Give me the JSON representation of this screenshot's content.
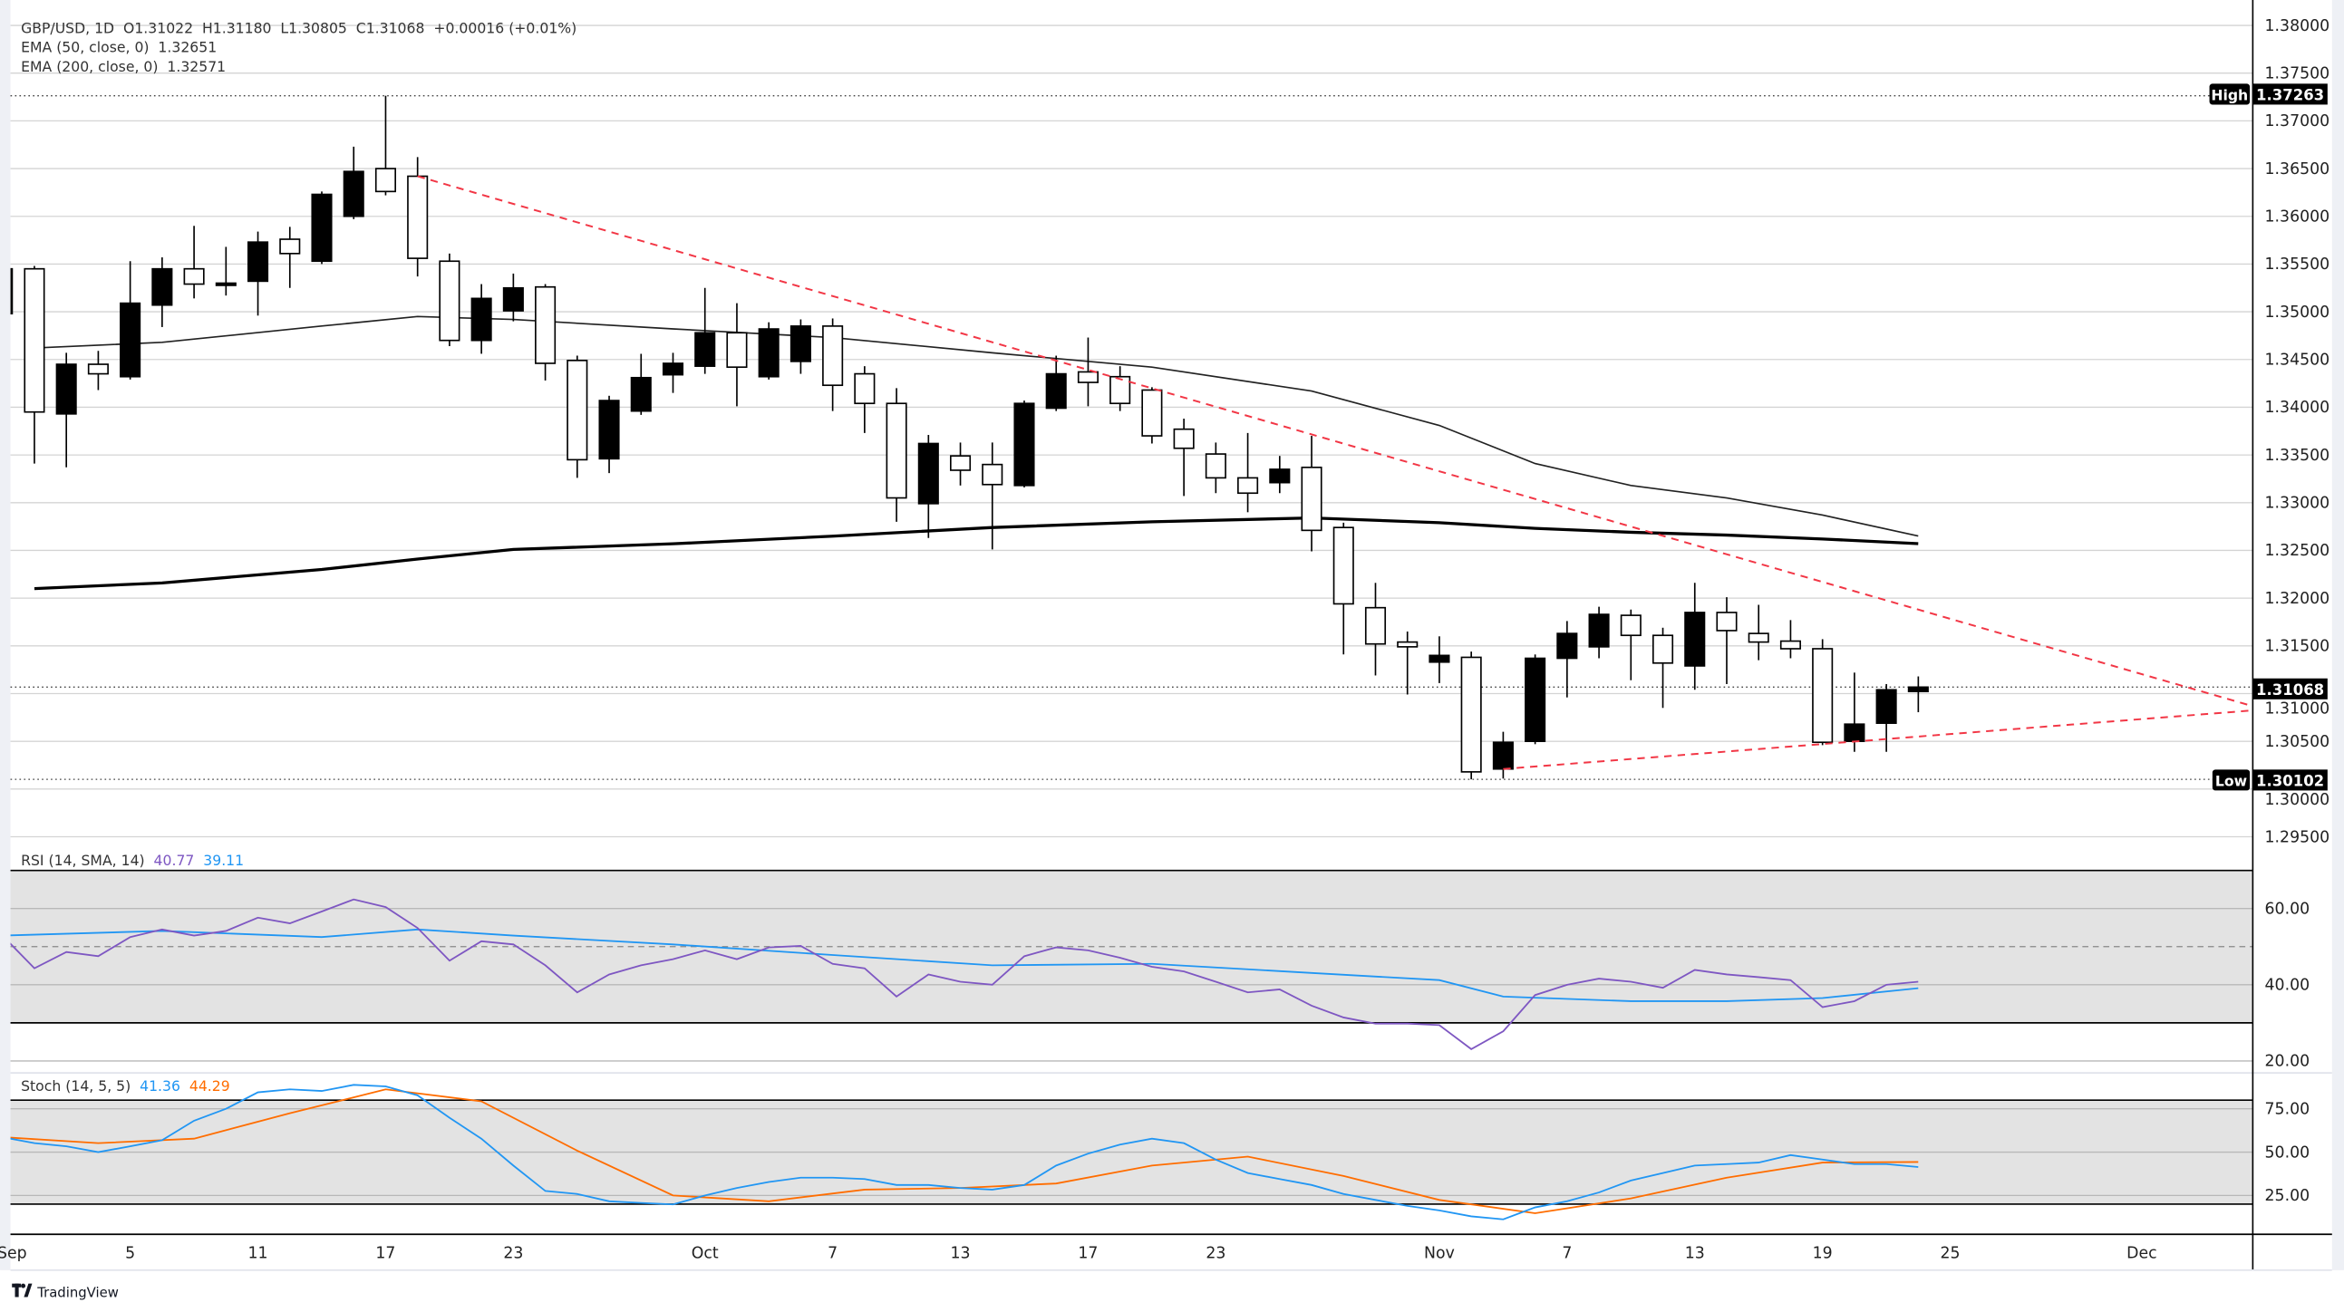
{
  "chart_data": {
    "type": "candlestick",
    "header": {
      "symbol": "GBP/USD, 1D",
      "open": "O1.31022",
      "high": "H1.31180",
      "low": "L1.30805",
      "close": "C1.31068",
      "change": "+0.00016 (+0.01%)",
      "ema50_label": "EMA (50, close, 0)",
      "ema50_value": "1.32651",
      "ema200_label": "EMA (200, close, 0)",
      "ema200_value": "1.32571"
    },
    "price_axis": {
      "ylim": [
        1.2925,
        1.3826
      ],
      "ticks": [
        "1.38000",
        "1.37500",
        "1.37000",
        "1.36500",
        "1.36000",
        "1.35500",
        "1.35000",
        "1.34500",
        "1.34000",
        "1.33500",
        "1.33000",
        "1.32500",
        "1.32000",
        "1.31500",
        "1.31000",
        "1.30500",
        "1.30000",
        "1.29500"
      ],
      "grid": true
    },
    "markers": {
      "high_label": "High",
      "high_value": "1.37263",
      "high": 1.37263,
      "low_label": "Low",
      "low_value": "1.30102",
      "low": 1.30102,
      "last_value": "1.31068",
      "last": 1.31068
    },
    "time_axis": {
      "ticks": [
        {
          "label": "Sep",
          "bar": 0.3
        },
        {
          "label": "5",
          "bar": 4
        },
        {
          "label": "11",
          "bar": 8
        },
        {
          "label": "17",
          "bar": 12
        },
        {
          "label": "23",
          "bar": 16
        },
        {
          "label": "Oct",
          "bar": 22
        },
        {
          "label": "7",
          "bar": 26
        },
        {
          "label": "13",
          "bar": 30
        },
        {
          "label": "17",
          "bar": 34
        },
        {
          "label": "23",
          "bar": 38
        },
        {
          "label": "Nov",
          "bar": 45
        },
        {
          "label": "7",
          "bar": 49
        },
        {
          "label": "13",
          "bar": 53
        },
        {
          "label": "19",
          "bar": 57
        },
        {
          "label": "25",
          "bar": 61
        },
        {
          "label": "Dec",
          "bar": 67
        }
      ]
    },
    "candles_columns": [
      "date",
      "open",
      "high",
      "low",
      "close"
    ],
    "candles": [
      [
        "Aug 30",
        1.3498,
        1.355,
        1.349,
        1.3545
      ],
      [
        "Sep 2",
        1.3545,
        1.3548,
        1.3341,
        1.3395
      ],
      [
        "Sep 3",
        1.3393,
        1.3457,
        1.3337,
        1.3445
      ],
      [
        "Sep 4",
        1.3445,
        1.3459,
        1.3418,
        1.3435
      ],
      [
        "Sep 5",
        1.3432,
        1.3553,
        1.3429,
        1.3509
      ],
      [
        "Sep 6",
        1.3507,
        1.3557,
        1.3484,
        1.3545
      ],
      [
        "Sep 9",
        1.3545,
        1.359,
        1.3514,
        1.3529
      ],
      [
        "Sep 10",
        1.3528,
        1.3568,
        1.3517,
        1.353
      ],
      [
        "Sep 11",
        1.3532,
        1.3584,
        1.3496,
        1.3573
      ],
      [
        "Sep 12",
        1.3576,
        1.3589,
        1.3525,
        1.3561
      ],
      [
        "Sep 13",
        1.3553,
        1.3626,
        1.355,
        1.3623
      ],
      [
        "Sep 16",
        1.36,
        1.3673,
        1.3597,
        1.3647
      ],
      [
        "Sep 17",
        1.365,
        1.37263,
        1.3622,
        1.3626
      ],
      [
        "Sep 18",
        1.3642,
        1.3662,
        1.3537,
        1.3556
      ],
      [
        "Sep 19",
        1.3553,
        1.3561,
        1.3464,
        1.347
      ],
      [
        "Sep 20",
        1.347,
        1.3529,
        1.3456,
        1.3514
      ],
      [
        "Sep 23",
        1.3501,
        1.354,
        1.349,
        1.3525
      ],
      [
        "Sep 24",
        1.3526,
        1.3529,
        1.3428,
        1.3446
      ],
      [
        "Sep 25",
        1.3449,
        1.3454,
        1.3326,
        1.3345
      ],
      [
        "Sep 26",
        1.3346,
        1.3412,
        1.3331,
        1.3407
      ],
      [
        "Sep 27",
        1.3396,
        1.3456,
        1.3392,
        1.3431
      ],
      [
        "Sep 30",
        1.3434,
        1.3457,
        1.3415,
        1.3446
      ],
      [
        "Oct 1",
        1.3443,
        1.3525,
        1.3435,
        1.3478
      ],
      [
        "Oct 2",
        1.3478,
        1.3509,
        1.3401,
        1.3442
      ],
      [
        "Oct 3",
        1.3432,
        1.3489,
        1.3429,
        1.3482
      ],
      [
        "Oct 4",
        1.3448,
        1.3492,
        1.3435,
        1.3485
      ],
      [
        "Oct 7",
        1.3485,
        1.3493,
        1.3396,
        1.3423
      ],
      [
        "Oct 8",
        1.3435,
        1.3443,
        1.3373,
        1.3404
      ],
      [
        "Oct 9",
        1.3404,
        1.342,
        1.328,
        1.3305
      ],
      [
        "Oct 10",
        1.3299,
        1.3371,
        1.3263,
        1.3362
      ],
      [
        "Oct 11",
        1.3349,
        1.3363,
        1.3318,
        1.3334
      ],
      [
        "Oct 14",
        1.334,
        1.3363,
        1.3251,
        1.3319
      ],
      [
        "Oct 15",
        1.3318,
        1.3407,
        1.3316,
        1.3404
      ],
      [
        "Oct 16",
        1.3399,
        1.3454,
        1.3396,
        1.3435
      ],
      [
        "Oct 17",
        1.3437,
        1.3473,
        1.3401,
        1.3426
      ],
      [
        "Oct 18",
        1.3432,
        1.3443,
        1.3396,
        1.3404
      ],
      [
        "Oct 21",
        1.3418,
        1.3421,
        1.3362,
        1.337
      ],
      [
        "Oct 22",
        1.3377,
        1.3388,
        1.3307,
        1.3357
      ],
      [
        "Oct 23",
        1.3351,
        1.3363,
        1.331,
        1.3326
      ],
      [
        "Oct 24",
        1.3326,
        1.3373,
        1.329,
        1.331
      ],
      [
        "Oct 25",
        1.3321,
        1.3349,
        1.331,
        1.3335
      ],
      [
        "Oct 28",
        1.3337,
        1.337,
        1.3249,
        1.3271
      ],
      [
        "Oct 29",
        1.3274,
        1.3279,
        1.3141,
        1.3194
      ],
      [
        "Oct 30",
        1.319,
        1.3216,
        1.3119,
        1.3152
      ],
      [
        "Oct 31",
        1.3154,
        1.3165,
        1.3099,
        1.3149
      ],
      [
        "Nov 1",
        1.3133,
        1.316,
        1.3111,
        1.314
      ],
      [
        "Nov 4",
        1.3138,
        1.3144,
        1.30102,
        1.3018
      ],
      [
        "Nov 5",
        1.3021,
        1.306,
        1.3011,
        1.3049
      ],
      [
        "Nov 6",
        1.305,
        1.3141,
        1.3047,
        1.3137
      ],
      [
        "Nov 7",
        1.3137,
        1.3176,
        1.3096,
        1.3163
      ],
      [
        "Nov 8",
        1.3149,
        1.3191,
        1.3137,
        1.3183
      ],
      [
        "Nov 11",
        1.3182,
        1.3188,
        1.3114,
        1.3161
      ],
      [
        "Nov 12",
        1.3161,
        1.3169,
        1.3085,
        1.3132
      ],
      [
        "Nov 13",
        1.3129,
        1.3216,
        1.3104,
        1.3185
      ],
      [
        "Nov 14",
        1.3185,
        1.3201,
        1.311,
        1.3166
      ],
      [
        "Nov 15",
        1.3163,
        1.3193,
        1.3135,
        1.3154
      ],
      [
        "Nov 18",
        1.3155,
        1.3177,
        1.3137,
        1.3147
      ],
      [
        "Nov 19",
        1.3147,
        1.3157,
        1.3046,
        1.3049
      ],
      [
        "Nov 20",
        1.305,
        1.3122,
        1.3039,
        1.3068
      ],
      [
        "Nov 21",
        1.3069,
        1.311,
        1.3039,
        1.3104
      ],
      [
        "Nov 22",
        1.31022,
        1.3118,
        1.30805,
        1.31068
      ]
    ],
    "ema50": [
      [
        "Sep 2",
        1.3462
      ],
      [
        "Sep 6",
        1.3468
      ],
      [
        "Sep 13",
        1.3485
      ],
      [
        "Sep 18",
        1.3495
      ],
      [
        "Sep 23",
        1.3492
      ],
      [
        "Sep 30",
        1.3482
      ],
      [
        "Oct 7",
        1.3473
      ],
      [
        "Oct 14",
        1.3457
      ],
      [
        "Oct 21",
        1.3442
      ],
      [
        "Oct 28",
        1.3417
      ],
      [
        "Nov 1",
        1.3381
      ],
      [
        "Nov 6",
        1.3341
      ],
      [
        "Nov 11",
        1.3318
      ],
      [
        "Nov 14",
        1.3305
      ],
      [
        "Nov 19",
        1.3287
      ],
      [
        "Nov 22",
        1.32651
      ]
    ],
    "ema200": [
      [
        "Sep 2",
        1.321
      ],
      [
        "Sep 6",
        1.3216
      ],
      [
        "Sep 13",
        1.323
      ],
      [
        "Sep 18",
        1.3241
      ],
      [
        "Sep 23",
        1.3251
      ],
      [
        "Sep 30",
        1.3257
      ],
      [
        "Oct 7",
        1.3265
      ],
      [
        "Oct 14",
        1.3274
      ],
      [
        "Oct 21",
        1.328
      ],
      [
        "Oct 28",
        1.3284
      ],
      [
        "Nov 1",
        1.3279
      ],
      [
        "Nov 6",
        1.3273
      ],
      [
        "Nov 11",
        1.3269
      ],
      [
        "Nov 14",
        1.3266
      ],
      [
        "Nov 19",
        1.3262
      ],
      [
        "Nov 22",
        1.32571
      ]
    ],
    "trendlines": [
      {
        "style": "dashed",
        "points": [
          [
            "Sep 18",
            1.3642
          ],
          [
            "Nov 22",
            1.3188
          ]
        ]
      },
      {
        "style": "dashed",
        "points": [
          [
            "Nov 5",
            1.3021
          ],
          [
            "Nov 22",
            1.3055
          ]
        ]
      }
    ],
    "rsi": {
      "label": "RSI (14, SMA, 14)",
      "value": "40.77",
      "sma_value": "39.11",
      "ticks": [
        "60.00",
        "40.00",
        "20.00"
      ],
      "band": [
        30,
        70
      ],
      "midline": 50,
      "values": [
        52.9,
        44.3,
        48.6,
        47.5,
        52.5,
        54.5,
        52.9,
        54.1,
        57.6,
        56.1,
        59.2,
        62.4,
        60.4,
        54.9,
        46.3,
        51.4,
        50.6,
        45.1,
        38.0,
        42.7,
        45.1,
        46.7,
        49.0,
        46.7,
        49.8,
        50.2,
        45.5,
        44.3,
        36.9,
        42.7,
        40.8,
        40.0,
        47.5,
        49.8,
        49.0,
        47.1,
        44.7,
        43.5,
        40.8,
        38.0,
        38.8,
        34.5,
        31.4,
        29.8,
        29.8,
        29.4,
        23.1,
        27.8,
        37.3,
        40.0,
        41.6,
        40.8,
        39.2,
        43.9,
        42.7,
        42.0,
        41.2,
        34.1,
        35.7,
        40.0,
        40.77
      ],
      "sma": [
        [
          "Aug 30",
          52.9
        ],
        [
          "Sep 6",
          54.1
        ],
        [
          "Sep 13",
          52.5
        ],
        [
          "Sep 18",
          54.5
        ],
        [
          "Sep 23",
          52.9
        ],
        [
          "Sep 30",
          50.6
        ],
        [
          "Oct 7",
          47.8
        ],
        [
          "Oct 14",
          45.1
        ],
        [
          "Oct 21",
          45.5
        ],
        [
          "Oct 28",
          43.1
        ],
        [
          "Nov 1",
          41.2
        ],
        [
          "Nov 5",
          36.9
        ],
        [
          "Nov 11",
          35.7
        ],
        [
          "Nov 14",
          35.7
        ],
        [
          "Nov 19",
          36.5
        ],
        [
          "Nov 22",
          39.11
        ]
      ]
    },
    "stoch": {
      "label": "Stoch (14, 5, 5)",
      "k_value": "41.36",
      "d_value": "44.29",
      "ticks": [
        "75.00",
        "50.00",
        "25.00"
      ],
      "band": [
        20,
        80
      ],
      "k": [
        58.6,
        55.2,
        53.4,
        50,
        53.4,
        56.9,
        68.1,
        75.0,
        84.5,
        86.2,
        85.3,
        88.8,
        87.9,
        82.8,
        69.8,
        57.8,
        42.2,
        27.6,
        25.9,
        21.6,
        20.7,
        19.8,
        25.0,
        29.3,
        32.8,
        35.3,
        35.3,
        34.5,
        31.0,
        31.0,
        29.3,
        28.4,
        31.0,
        42.2,
        49.1,
        54.3,
        57.8,
        55.2,
        45.7,
        37.9,
        34.5,
        31.0,
        25.9,
        22.4,
        19.0,
        16.4,
        12.9,
        11.2,
        18.1,
        21.6,
        26.7,
        33.6,
        37.9,
        42.2,
        43.1,
        44.0,
        48.3,
        45.7,
        43.1,
        43.1,
        41.36
      ],
      "d": [
        [
          "Aug 30",
          58.6
        ],
        [
          "Sep 4",
          55.2
        ],
        [
          "Sep 9",
          57.8
        ],
        [
          "Sep 12",
          72.4
        ],
        [
          "Sep 17",
          86.2
        ],
        [
          "Sep 20",
          79.3
        ],
        [
          "Sep 25",
          50.9
        ],
        [
          "Sep 30",
          25.0
        ],
        [
          "Oct 3",
          21.6
        ],
        [
          "Oct 8",
          28.4
        ],
        [
          "Oct 11",
          29.3
        ],
        [
          "Oct 16",
          31.9
        ],
        [
          "Oct 21",
          42.2
        ],
        [
          "Oct 24",
          47.4
        ],
        [
          "Oct 29",
          36.2
        ],
        [
          "Nov 1",
          22.4
        ],
        [
          "Nov 6",
          14.7
        ],
        [
          "Nov 11",
          23.3
        ],
        [
          "Nov 14",
          35.3
        ],
        [
          "Nov 19",
          44.0
        ],
        [
          "Nov 22",
          44.29
        ]
      ]
    },
    "colors": {
      "up_candle": "#000000",
      "down_candle": "#ffffff",
      "trendline": "#f23645",
      "rsi": "#7e57c2",
      "rsi_sma": "#2196f3",
      "stoch_k": "#2196f3",
      "stoch_d": "#ff6d00",
      "band": "#e3e3e3",
      "grid": "#d4d4d4"
    }
  },
  "branding": {
    "logo_text": "TradingView"
  }
}
